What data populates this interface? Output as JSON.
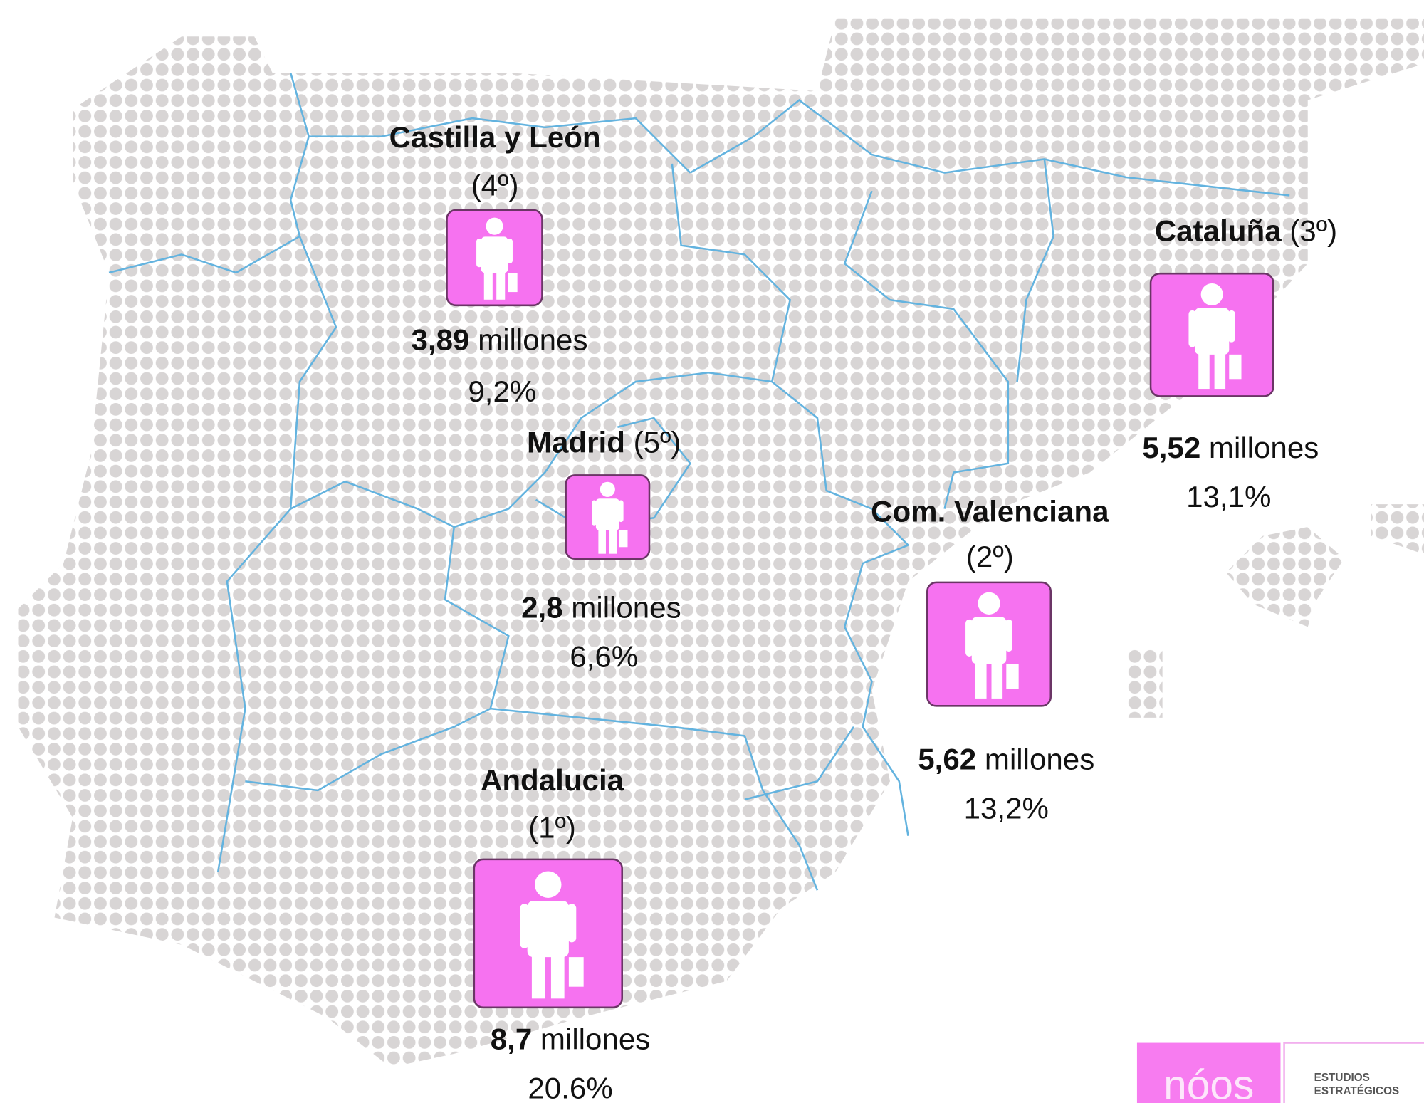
{
  "regions": [
    {
      "name": "Castilla y León",
      "rank": "(4º)",
      "amount": "3,89",
      "unit": "millones",
      "percent": "9,2%"
    },
    {
      "name": "Madrid",
      "rank": "(5º)",
      "amount": "2,8",
      "unit": "millones",
      "percent": "6,6%"
    },
    {
      "name": "Cataluña",
      "rank": "(3º)",
      "amount": "5,52",
      "unit": "millones",
      "percent": "13,1%"
    },
    {
      "name": "Com. Valenciana",
      "rank": "(2º)",
      "amount": "5,62",
      "unit": "millones",
      "percent": "13,2%"
    },
    {
      "name": "Andalucia",
      "rank": "(1º)",
      "amount": "8,7",
      "unit": "millones",
      "percent": "20.6%"
    }
  ],
  "logo": {
    "mark": "nóos",
    "line1": "ESTUDIOS",
    "line2": "ESTRATÉGICOS"
  }
}
